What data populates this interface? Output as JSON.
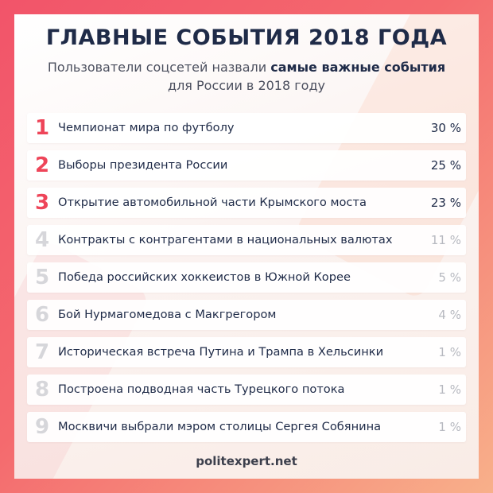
{
  "title": "ГЛАВНЫЕ СОБЫТИЯ 2018 ГОДА",
  "subtitle": {
    "line1_start": "Пользователи соцсетей назвали ",
    "line1_bold": "самые важные события",
    "line2": "для России в 2018 году"
  },
  "events": [
    {
      "rank": "1",
      "label": "Чемпионат мира по футболу",
      "percent": "30 %"
    },
    {
      "rank": "2",
      "label": "Выборы президента России",
      "percent": "25 %"
    },
    {
      "rank": "3",
      "label": "Открытие автомобильной части Крымского моста",
      "percent": "23 %"
    },
    {
      "rank": "4",
      "label": "Контракты с контрагентами в национальных валютах",
      "percent": "11 %"
    },
    {
      "rank": "5",
      "label": "Победа российских хоккеистов в Южной Корее",
      "percent": "5 %"
    },
    {
      "rank": "6",
      "label": "Бой Нурмагомедова с Макгрегором",
      "percent": "4 %"
    },
    {
      "rank": "7",
      "label": "Историческая встреча Путина и Трампа в Хельсинки",
      "percent": "1 %"
    },
    {
      "rank": "8",
      "label": "Построена подводная часть Турецкого потока",
      "percent": "1 %"
    },
    {
      "rank": "9",
      "label": "Москвичи выбрали мэром столицы Сергея Собянина",
      "percent": "1 %"
    }
  ],
  "footer": "politexpert.net",
  "colors": {
    "accent": "#ee4559",
    "text_dark": "#1f2b48",
    "muted_number": "#d6d6da",
    "muted_percent": "#b7b9c0"
  }
}
